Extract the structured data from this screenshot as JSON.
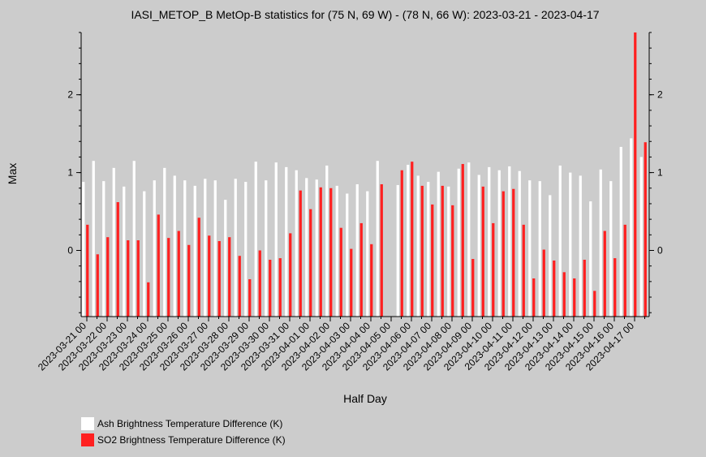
{
  "chart_data": {
    "type": "bar",
    "title": "IASI_METOP_B MetOp-B statistics for (75 N, 69 W) - (78 N, 66 W): 2023-03-21 - 2023-04-17",
    "xlabel": "Half Day",
    "ylabel": "Max",
    "ylim": [
      -0.85,
      2.8
    ],
    "yticks": [
      0,
      1,
      2
    ],
    "ytick_labels": [
      "0",
      "1",
      "2"
    ],
    "xtick_labels": [
      "2023-03-21 00",
      "2023-03-22 00",
      "2023-03-23 00",
      "2023-03-24 00",
      "2023-03-25 00",
      "2023-03-26 00",
      "2023-03-27 00",
      "2023-03-28 00",
      "2023-03-29 00",
      "2023-03-30 00",
      "2023-03-31 00",
      "2023-04-01 00",
      "2023-04-02 00",
      "2023-04-03 00",
      "2023-04-04 00",
      "2023-04-05 00",
      "2023-04-06 00",
      "2023-04-07 00",
      "2023-04-08 00",
      "2023-04-09 00",
      "2023-04-10 00",
      "2023-04-11 00",
      "2023-04-12 00",
      "2023-04-13 00",
      "2023-04-14 00",
      "2023-04-15 00",
      "2023-04-16 00",
      "2023-04-17 00"
    ],
    "series": [
      {
        "name": "Ash Brightness Temperature Difference (K)",
        "color": "#ffffff",
        "values": [
          0.88,
          1.15,
          0.89,
          1.06,
          0.82,
          1.15,
          0.76,
          0.9,
          1.06,
          0.96,
          0.9,
          0.83,
          0.92,
          0.9,
          0.65,
          0.92,
          0.88,
          1.14,
          0.9,
          1.13,
          1.07,
          1.03,
          0.93,
          0.91,
          1.09,
          0.83,
          0.73,
          0.85,
          0.76,
          1.15,
          null,
          0.84,
          1.1,
          0.96,
          0.88,
          1.01,
          0.82,
          1.05,
          1.13,
          0.97,
          1.07,
          1.03,
          1.08,
          1.02,
          0.9,
          0.89,
          0.71,
          1.09,
          1.0,
          0.96,
          0.63,
          1.04,
          0.89,
          1.33,
          1.44,
          1.2
        ]
      },
      {
        "name": "SO2 Brightness Temperature Difference (K)",
        "color": "#ff2020",
        "values": [
          0.33,
          -0.05,
          0.17,
          0.62,
          0.13,
          0.13,
          -0.41,
          0.46,
          0.16,
          0.25,
          0.07,
          0.42,
          0.19,
          0.12,
          0.17,
          -0.07,
          -0.37,
          0.0,
          -0.12,
          -0.1,
          0.22,
          0.77,
          0.53,
          0.81,
          0.8,
          0.29,
          0.02,
          0.35,
          0.08,
          0.85,
          null,
          1.03,
          1.14,
          0.83,
          0.59,
          0.83,
          0.58,
          1.11,
          -0.11,
          0.82,
          0.35,
          0.76,
          0.79,
          0.33,
          -0.36,
          0.01,
          -0.13,
          -0.28,
          -0.36,
          -0.12,
          -0.52,
          0.25,
          -0.1,
          0.33,
          2.8,
          1.39
        ]
      }
    ],
    "legend": {
      "position": "bottom-left",
      "entries": [
        {
          "label": "Ash Brightness Temperature Difference (K)",
          "color": "#ffffff"
        },
        {
          "label": "SO2 Brightness Temperature Difference (K)",
          "color": "#ff2020"
        }
      ]
    },
    "grid": false
  }
}
